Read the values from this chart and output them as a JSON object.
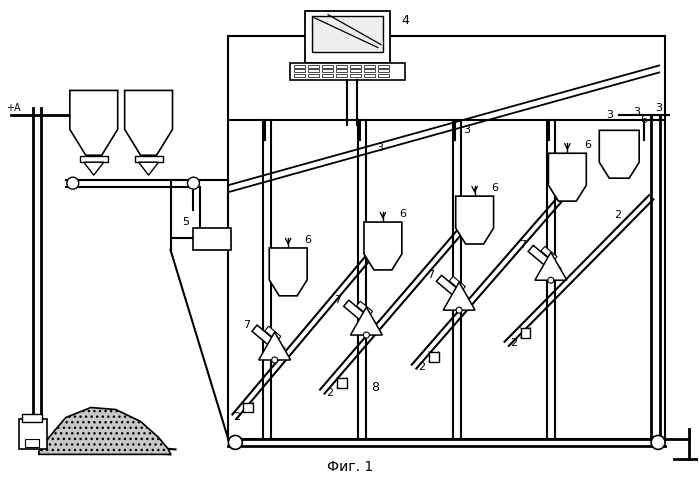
{
  "title": "Фиг. 1",
  "bg_color": "#ffffff",
  "line_color": "#000000",
  "fig_width": 6.99,
  "fig_height": 4.79,
  "dpi": 100
}
